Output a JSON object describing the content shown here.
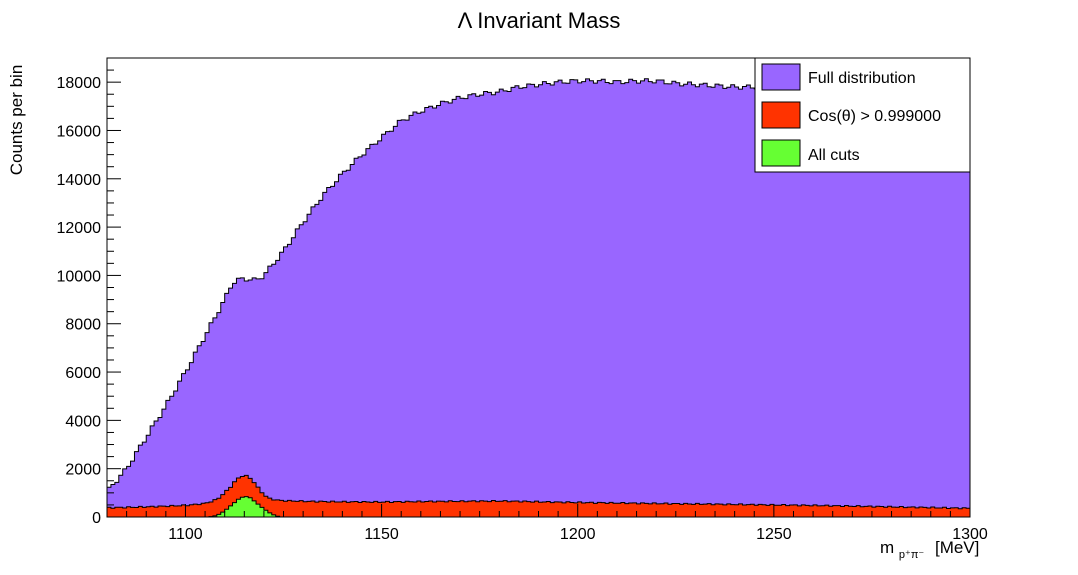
{
  "chart_data": {
    "type": "bar",
    "title": "Λ Invariant Mass",
    "xlabel_main": "m",
    "xlabel_sub": "p⁺π⁻",
    "xlabel_unit": "[MeV]",
    "ylabel": "Counts per bin",
    "xlim": [
      1080,
      1300
    ],
    "ylim": [
      0,
      19000
    ],
    "x_ticks": [
      1100,
      1150,
      1200,
      1250,
      1300
    ],
    "y_ticks": [
      0,
      2000,
      4000,
      6000,
      8000,
      10000,
      12000,
      14000,
      16000,
      18000
    ],
    "legend_position": "top-right",
    "grid": false,
    "series": [
      {
        "name": "Full distribution",
        "color": "#9966ff",
        "x": [
          1080,
          1085,
          1090,
          1095,
          1100,
          1105,
          1110,
          1112,
          1114,
          1116,
          1118,
          1120,
          1125,
          1130,
          1135,
          1140,
          1145,
          1150,
          1155,
          1160,
          1165,
          1170,
          1175,
          1180,
          1185,
          1190,
          1195,
          1200,
          1205,
          1210,
          1215,
          1220,
          1225,
          1230,
          1235,
          1240,
          1245,
          1250,
          1260,
          1270,
          1280,
          1290,
          1300
        ],
        "y": [
          1050,
          2000,
          3300,
          4600,
          6000,
          7500,
          9000,
          9700,
          9850,
          9850,
          9800,
          10000,
          11000,
          12200,
          13300,
          14200,
          15000,
          15700,
          16400,
          16800,
          17100,
          17350,
          17500,
          17600,
          17800,
          17900,
          18000,
          18050,
          18050,
          18000,
          18050,
          18050,
          17950,
          17900,
          17850,
          17800,
          17800,
          17750,
          17700,
          17650,
          17600,
          17550,
          17500
        ]
      },
      {
        "name": "Cos(θ) > 0.999000",
        "color": "#ff3300",
        "x": [
          1080,
          1090,
          1100,
          1105,
          1108,
          1111,
          1113,
          1115,
          1117,
          1119,
          1121,
          1124,
          1130,
          1140,
          1150,
          1160,
          1170,
          1180,
          1200,
          1220,
          1240,
          1260,
          1280,
          1300
        ],
        "y": [
          380,
          420,
          480,
          560,
          720,
          1150,
          1550,
          1750,
          1550,
          1100,
          780,
          680,
          650,
          630,
          620,
          640,
          650,
          660,
          600,
          560,
          520,
          480,
          420,
          360
        ]
      },
      {
        "name": "All cuts",
        "color": "#66ff33",
        "x": [
          1106,
          1108,
          1110,
          1112,
          1114,
          1116,
          1118,
          1120,
          1122,
          1124
        ],
        "y": [
          0,
          60,
          250,
          530,
          800,
          860,
          600,
          330,
          120,
          0
        ]
      }
    ]
  }
}
